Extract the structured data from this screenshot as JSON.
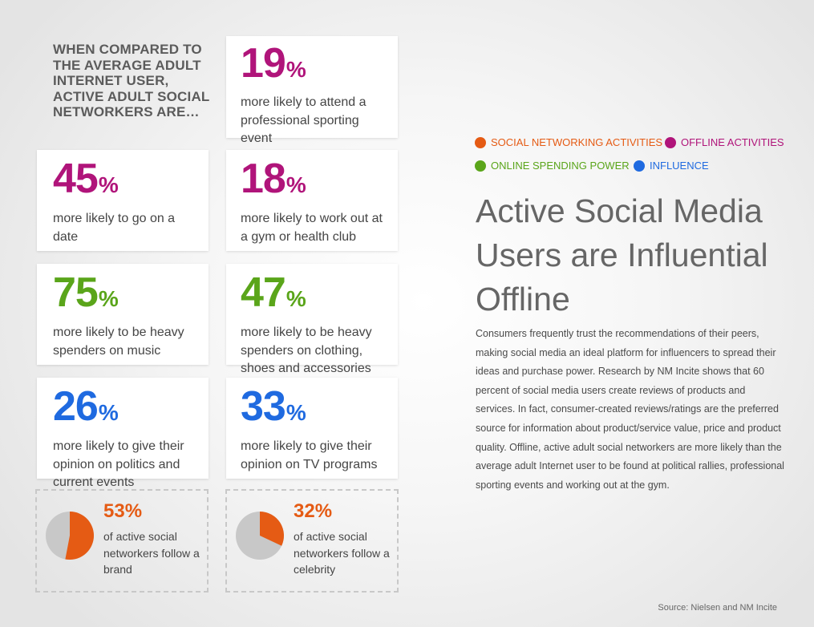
{
  "intro": "WHEN COMPARED TO THE AVERAGE ADULT INTERNET USER, ACTIVE ADULT SOCIAL NETWORKERS ARE…",
  "colors": {
    "social": "#e55b14",
    "offline": "#b0147a",
    "spending": "#5aa51a",
    "influence": "#1f6ae0",
    "pie_gray": "#c8c8c8"
  },
  "stats": {
    "sporting": {
      "value": "19",
      "unit": "%",
      "text": "more likely to attend a professional sporting event"
    },
    "date": {
      "value": "45",
      "unit": "%",
      "text": "more likely to go on a date"
    },
    "gym": {
      "value": "18",
      "unit": "%",
      "text": "more likely to work out at a gym or health club"
    },
    "music": {
      "value": "75",
      "unit": "%",
      "text": "more likely to be heavy spenders on music"
    },
    "clothing": {
      "value": "47",
      "unit": "%",
      "text": "more likely to be heavy spenders on clothing, shoes and accessories"
    },
    "politics": {
      "value": "26",
      "unit": "%",
      "text": "more likely to give their opinion on politics and current events"
    },
    "tv": {
      "value": "33",
      "unit": "%",
      "text": "more likely to give their opinion on TV programs"
    }
  },
  "pies": {
    "brand": {
      "label": "53%",
      "fraction": 0.53,
      "text": "of active social networkers follow a brand"
    },
    "celebrity": {
      "label": "32%",
      "fraction": 0.32,
      "text": "of active social networkers follow a celebrity"
    }
  },
  "legend": {
    "social": "SOCIAL NETWORKING ACTIVITIES",
    "offline": "OFFLINE ACTIVITIES",
    "spending": "ONLINE SPENDING POWER",
    "influence": "INFLUENCE"
  },
  "headline": "Active Social Media Users are Influential Offline",
  "body": "Consumers frequently trust the recommendations of their peers, making social media an ideal platform for influencers to spread their ideas and purchase power. Research by NM Incite shows that 60 percent of social media users create reviews of products and services. In fact, consumer-created reviews/ratings are the preferred source for information about product/service value, price and product quality. Offline, active adult social networkers are more likely than the average adult Internet user to be found at political rallies, professional sporting events and working out at the gym.",
  "source": "Source: Nielsen and NM Incite"
}
